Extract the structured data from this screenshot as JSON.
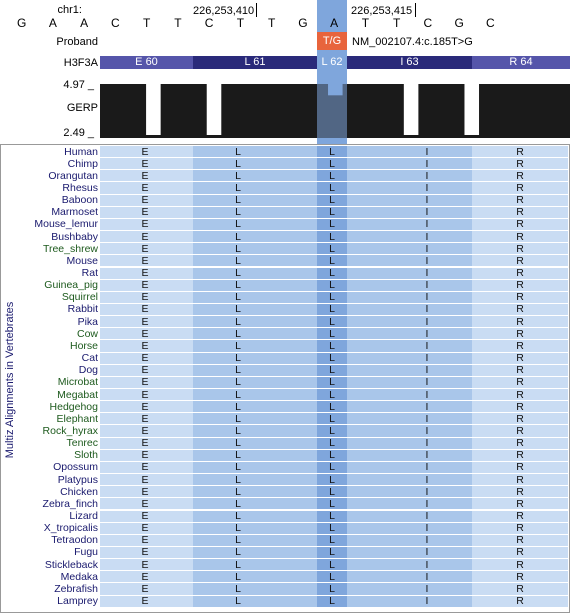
{
  "header": {
    "chrom_label": "chr1:",
    "position_left": "226,253,410",
    "position_right": "226,253,415"
  },
  "bases": [
    "G",
    "A",
    "A",
    "C",
    "T",
    "T",
    "C",
    "T",
    "T",
    "G",
    "A",
    "T",
    "T",
    "C",
    "G",
    "C"
  ],
  "proband": {
    "label": "Proband",
    "variant": "T/G",
    "hgvs": "NM_002107.4:c.185T>G"
  },
  "gene": {
    "label": "H3F3A",
    "codons": [
      {
        "text": "E 60",
        "tone": "light"
      },
      {
        "text": "L 61",
        "tone": "dark"
      },
      {
        "text": "L 62",
        "tone": "highlight"
      },
      {
        "text": "I 63",
        "tone": "dark"
      },
      {
        "text": "R 64",
        "tone": "light"
      }
    ]
  },
  "gerp": {
    "label": "GERP",
    "max_label": "4.97 _",
    "min_label": "2.49 _",
    "ymin": 2.49,
    "ymax": 4.97,
    "values": [
      4.97,
      4.97,
      4.97,
      2.49,
      4.97,
      4.97,
      4.97,
      2.49,
      4.97,
      4.97,
      4.97,
      4.97,
      4.97,
      4.97,
      4.97,
      4.45,
      4.97,
      4.97,
      4.97,
      4.97,
      2.49,
      4.97,
      4.97,
      4.97,
      2.49,
      4.97,
      4.97,
      4.97,
      4.97,
      4.97,
      4.97
    ]
  },
  "alignment": {
    "side_label": "Multiz Alignments in Vertebrates",
    "residues": [
      "E",
      "L",
      "L",
      "I",
      "R"
    ],
    "species": [
      {
        "name": "Human",
        "group": "primate"
      },
      {
        "name": "Chimp",
        "group": "primate"
      },
      {
        "name": "Orangutan",
        "group": "primate"
      },
      {
        "name": "Rhesus",
        "group": "primate"
      },
      {
        "name": "Baboon",
        "group": "primate"
      },
      {
        "name": "Marmoset",
        "group": "primate"
      },
      {
        "name": "Mouse_lemur",
        "group": "primate"
      },
      {
        "name": "Bushbaby",
        "group": "primate"
      },
      {
        "name": "Tree_shrew",
        "group": "placental"
      },
      {
        "name": "Mouse",
        "group": "glires"
      },
      {
        "name": "Rat",
        "group": "glires"
      },
      {
        "name": "Guinea_pig",
        "group": "placental"
      },
      {
        "name": "Squirrel",
        "group": "placental"
      },
      {
        "name": "Rabbit",
        "group": "glires"
      },
      {
        "name": "Pika",
        "group": "glires"
      },
      {
        "name": "Cow",
        "group": "placental"
      },
      {
        "name": "Horse",
        "group": "placental"
      },
      {
        "name": "Cat",
        "group": "glires"
      },
      {
        "name": "Dog",
        "group": "glires"
      },
      {
        "name": "Microbat",
        "group": "placental"
      },
      {
        "name": "Megabat",
        "group": "placental"
      },
      {
        "name": "Hedgehog",
        "group": "placental"
      },
      {
        "name": "Elephant",
        "group": "placental"
      },
      {
        "name": "Rock_hyrax",
        "group": "placental"
      },
      {
        "name": "Tenrec",
        "group": "placental"
      },
      {
        "name": "Sloth",
        "group": "placental"
      },
      {
        "name": "Opossum",
        "group": "other"
      },
      {
        "name": "Platypus",
        "group": "other"
      },
      {
        "name": "Chicken",
        "group": "other"
      },
      {
        "name": "Zebra_finch",
        "group": "other"
      },
      {
        "name": "Lizard",
        "group": "other"
      },
      {
        "name": "X_tropicalis",
        "group": "other"
      },
      {
        "name": "Tetraodon",
        "group": "other"
      },
      {
        "name": "Fugu",
        "group": "other"
      },
      {
        "name": "Stickleback",
        "group": "other"
      },
      {
        "name": "Medaka",
        "group": "other"
      },
      {
        "name": "Zebrafish",
        "group": "other"
      },
      {
        "name": "Lamprey",
        "group": "other"
      }
    ]
  },
  "colors": {
    "primate": "#1a1a6e",
    "glires": "#1a1a6e",
    "placental": "#1d5a1d",
    "other": "#1a1a6e",
    "gene_light": "#5555aa",
    "gene_dark": "#2a2a7a",
    "highlight": "#7fa6dc",
    "variant": "#e8643c",
    "gerp_bar": "#1a1a1a",
    "row_light": "#c9dcf3",
    "row_dark": "#a9c6ea"
  }
}
